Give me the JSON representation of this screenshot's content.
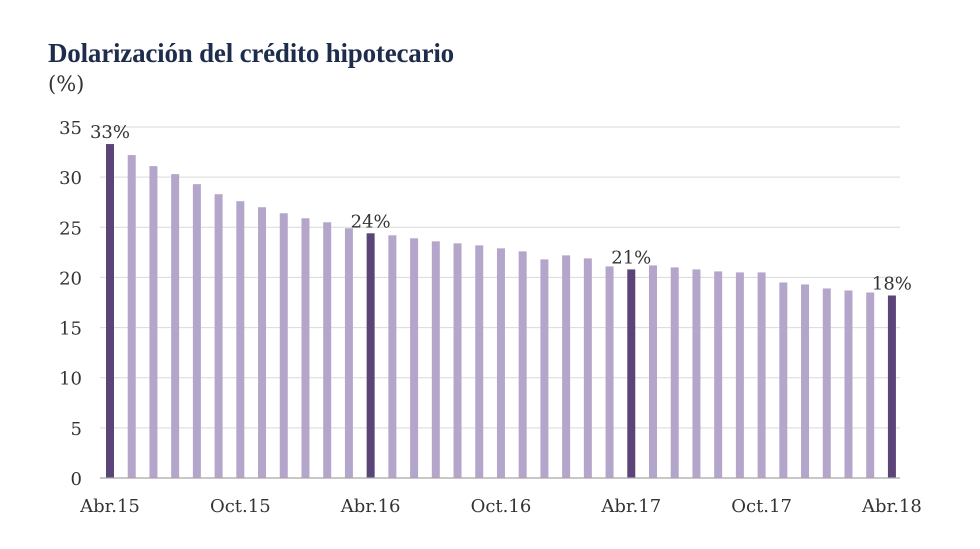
{
  "chart_data": {
    "type": "bar",
    "title": "Dolarización del crédito hipotecario",
    "subtitle": "(%)",
    "xlabel": "",
    "ylabel": "",
    "ylim": [
      0,
      35
    ],
    "yticks": [
      0,
      5,
      10,
      15,
      20,
      25,
      30,
      35
    ],
    "grid": true,
    "legend": "none",
    "x_tick_labels": [
      {
        "index": 0,
        "label": "Abr.15"
      },
      {
        "index": 6,
        "label": "Oct.15"
      },
      {
        "index": 12,
        "label": "Abr.16"
      },
      {
        "index": 18,
        "label": "Oct.16"
      },
      {
        "index": 24,
        "label": "Abr.17"
      },
      {
        "index": 30,
        "label": "Oct.17"
      },
      {
        "index": 36,
        "label": "Abr.18"
      }
    ],
    "values": [
      33.3,
      32.2,
      31.1,
      30.3,
      29.3,
      28.3,
      27.6,
      27.0,
      26.4,
      25.9,
      25.5,
      24.9,
      24.4,
      24.2,
      23.9,
      23.6,
      23.4,
      23.2,
      22.9,
      22.6,
      21.8,
      22.2,
      21.9,
      21.1,
      20.8,
      21.2,
      21.0,
      20.8,
      20.6,
      20.5,
      20.5,
      19.5,
      19.3,
      18.9,
      18.7,
      18.5,
      18.2
    ],
    "highlighted": [
      {
        "index": 0,
        "label": "33%"
      },
      {
        "index": 12,
        "label": "24%"
      },
      {
        "index": 24,
        "label": "21%"
      },
      {
        "index": 36,
        "label": "18%"
      }
    ],
    "colors": {
      "bar": "#b4a6ca",
      "highlight": "#5b4578",
      "grid": "#d9d9d9",
      "axis": "#a6a6a6",
      "title": "#1f2d4d"
    }
  }
}
